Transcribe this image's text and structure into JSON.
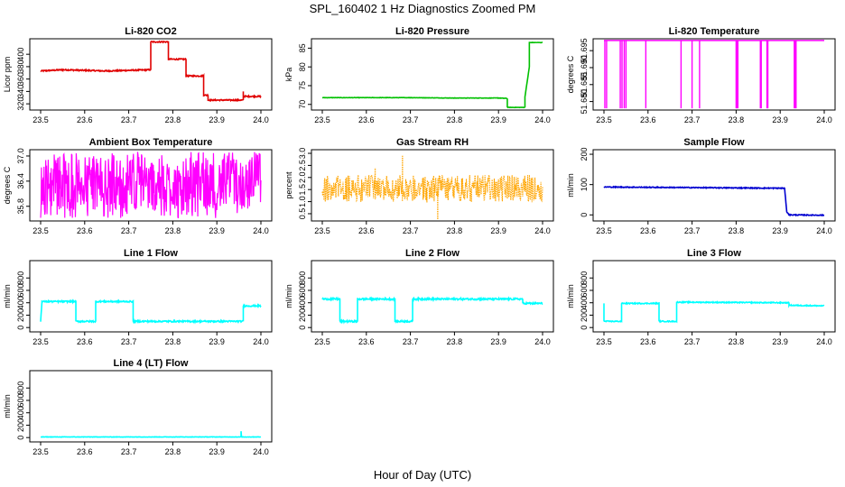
{
  "title": "SPL_160402  1 Hz Diagnostics Zoomed PM",
  "xlabel": "Hour of Day (UTC)",
  "chart_data": [
    {
      "type": "line",
      "title": "Li-820 CO2",
      "ylabel": "Licor ppm",
      "color": "#e00000",
      "xlim": [
        23.5,
        24.0
      ],
      "ylim": [
        310,
        425
      ],
      "x_ticks": [
        "23.5",
        "23.6",
        "23.7",
        "23.8",
        "23.9",
        "24.0"
      ],
      "y_ticks": [
        320,
        340,
        360,
        380,
        400
      ],
      "noise": 1,
      "series": [
        {
          "points": [
            [
              23.5,
              373
            ],
            [
              23.55,
              375
            ],
            [
              23.6,
              374
            ],
            [
              23.65,
              373
            ],
            [
              23.7,
              374
            ],
            [
              23.75,
              375
            ],
            [
              23.75,
              420
            ],
            [
              23.79,
              420
            ],
            [
              23.79,
              392
            ],
            [
              23.83,
              392
            ],
            [
              23.83,
              365
            ],
            [
              23.87,
              365
            ],
            [
              23.87,
              334
            ],
            [
              23.88,
              334
            ],
            [
              23.88,
              326
            ],
            [
              23.96,
              326
            ],
            [
              23.96,
              340
            ],
            [
              23.96,
              332
            ],
            [
              24.0,
              332
            ]
          ]
        }
      ]
    },
    {
      "type": "line",
      "title": "Li-820 Pressure",
      "ylabel": "kPa",
      "color": "#00c000",
      "xlim": [
        23.5,
        24.0
      ],
      "ylim": [
        68.5,
        87.5
      ],
      "x_ticks": [
        "23.5",
        "23.6",
        "23.7",
        "23.8",
        "23.9",
        "24.0"
      ],
      "y_ticks": [
        70,
        75,
        80,
        85
      ],
      "noise": 0.05,
      "series": [
        {
          "points": [
            [
              23.5,
              71.8
            ],
            [
              23.6,
              71.8
            ],
            [
              23.7,
              71.8
            ],
            [
              23.8,
              71.7
            ],
            [
              23.9,
              71.7
            ],
            [
              23.92,
              71.6
            ],
            [
              23.92,
              69.2
            ],
            [
              23.96,
              69.2
            ],
            [
              23.96,
              72
            ],
            [
              23.97,
              80
            ],
            [
              23.97,
              86.5
            ],
            [
              24.0,
              86.5
            ]
          ]
        }
      ]
    },
    {
      "type": "line",
      "title": "Li-820 Temperature",
      "ylabel": "degrees C",
      "color": "#ff00ff",
      "xlim": [
        23.5,
        24.0
      ],
      "ylim": [
        51.6775,
        51.6985
      ],
      "x_ticks": [
        "23.5",
        "23.6",
        "23.7",
        "23.8",
        "23.9",
        "24.0"
      ],
      "y_ticks": [
        "51.680",
        "51.685",
        "51.690",
        "51.695"
      ],
      "dips": [
        23.502,
        23.506,
        23.537,
        23.541,
        23.546,
        23.55,
        23.595,
        23.675,
        23.7,
        23.717,
        23.8,
        23.802,
        23.804,
        23.855,
        23.857,
        23.87,
        23.872,
        23.932,
        23.934,
        23.936
      ],
      "series": [
        {
          "points": [
            [
              23.5,
              51.698
            ],
            [
              24.0,
              51.698
            ]
          ],
          "dip_to": 51.678
        }
      ]
    },
    {
      "type": "line",
      "title": "Ambient Box Temperature",
      "ylabel": "degrees C",
      "color": "#ff00ff",
      "xlim": [
        23.5,
        24.0
      ],
      "ylim": [
        35.45,
        37.15
      ],
      "x_ticks": [
        "23.5",
        "23.6",
        "23.7",
        "23.8",
        "23.9",
        "24.0"
      ],
      "y_ticks": [
        "35.8",
        "36.4",
        "37.0"
      ],
      "series": [
        {
          "noise_band": {
            "center": 36.4,
            "low": 35.7,
            "high": 36.95
          }
        }
      ]
    },
    {
      "type": "scatter",
      "title": "Gas Stream RH",
      "ylabel": "percent",
      "color": "#ffa500",
      "xlim": [
        23.5,
        24.0
      ],
      "ylim": [
        0.2,
        3.15
      ],
      "x_ticks": [
        "23.5",
        "23.6",
        "23.7",
        "23.8",
        "23.9",
        "24.0"
      ],
      "y_ticks": [
        "0.5",
        "1.0",
        "1.5",
        "2.0",
        "2.5",
        "3.0"
      ],
      "series": [
        {
          "noise_band": {
            "center": 1.55,
            "low": 1.1,
            "high": 2.0
          },
          "spikes": [
            [
              23.682,
              2.9
            ],
            [
              23.762,
              0.25
            ],
            [
              23.62,
              2.4
            ],
            [
              23.56,
              1.0
            ]
          ]
        }
      ]
    },
    {
      "type": "line",
      "title": "Sample Flow",
      "ylabel": "ml/min",
      "color": "#0000d0",
      "xlim": [
        23.5,
        24.0
      ],
      "ylim": [
        -20,
        215
      ],
      "x_ticks": [
        "23.5",
        "23.6",
        "23.7",
        "23.8",
        "23.9",
        "24.0"
      ],
      "y_ticks": [
        0,
        100,
        200
      ],
      "noise": 1.5,
      "series": [
        {
          "points": [
            [
              23.5,
              92
            ],
            [
              23.7,
              90
            ],
            [
              23.9,
              88
            ],
            [
              23.91,
              88
            ],
            [
              23.915,
              10
            ],
            [
              23.92,
              0
            ],
            [
              24.0,
              -1
            ]
          ]
        }
      ]
    },
    {
      "type": "line",
      "title": "Line 1 Flow",
      "ylabel": "ml/min",
      "color": "#00ffff",
      "xlim": [
        23.5,
        24.0
      ],
      "ylim": [
        -70,
        1080
      ],
      "x_ticks": [
        "23.5",
        "23.6",
        "23.7",
        "23.8",
        "23.9",
        "24.0"
      ],
      "y_ticks": [
        0,
        200,
        400,
        600,
        800
      ],
      "noise": 12,
      "series": [
        {
          "points": [
            [
              23.5,
              100
            ],
            [
              23.503,
              420
            ],
            [
              23.58,
              420
            ],
            [
              23.58,
              100
            ],
            [
              23.625,
              100
            ],
            [
              23.625,
              420
            ],
            [
              23.71,
              420
            ],
            [
              23.71,
              100
            ],
            [
              23.96,
              100
            ],
            [
              23.96,
              350
            ],
            [
              24.0,
              350
            ]
          ]
        }
      ]
    },
    {
      "type": "line",
      "title": "Line 2 Flow",
      "ylabel": "ml/min",
      "color": "#00ffff",
      "xlim": [
        23.5,
        24.0
      ],
      "ylim": [
        -70,
        1080
      ],
      "x_ticks": [
        "23.5",
        "23.6",
        "23.7",
        "23.8",
        "23.9",
        "24.0"
      ],
      "y_ticks": [
        0,
        200,
        400,
        600,
        800
      ],
      "noise": 14,
      "series": [
        {
          "points": [
            [
              23.5,
              460
            ],
            [
              23.54,
              460
            ],
            [
              23.54,
              100
            ],
            [
              23.58,
              100
            ],
            [
              23.58,
              460
            ],
            [
              23.665,
              460
            ],
            [
              23.665,
              100
            ],
            [
              23.705,
              100
            ],
            [
              23.705,
              460
            ],
            [
              23.955,
              460
            ],
            [
              23.955,
              390
            ],
            [
              24.0,
              390
            ]
          ]
        }
      ]
    },
    {
      "type": "line",
      "title": "Line 3 Flow",
      "ylabel": "ml/min",
      "color": "#00ffff",
      "xlim": [
        23.5,
        24.0
      ],
      "ylim": [
        -70,
        1080
      ],
      "x_ticks": [
        "23.5",
        "23.6",
        "23.7",
        "23.8",
        "23.9",
        "24.0"
      ],
      "y_ticks": [
        0,
        200,
        400,
        600,
        800
      ],
      "noise": 8,
      "series": [
        {
          "points": [
            [
              23.5,
              390
            ],
            [
              23.5,
              100
            ],
            [
              23.54,
              100
            ],
            [
              23.54,
              390
            ],
            [
              23.625,
              390
            ],
            [
              23.625,
              100
            ],
            [
              23.665,
              100
            ],
            [
              23.665,
              410
            ],
            [
              23.92,
              400
            ],
            [
              23.92,
              360
            ],
            [
              24.0,
              350
            ]
          ]
        }
      ]
    },
    {
      "type": "line",
      "title": "Line 4 (LT) Flow",
      "ylabel": "ml/min",
      "color": "#00ffff",
      "xlim": [
        23.5,
        24.0
      ],
      "ylim": [
        -70,
        1080
      ],
      "x_ticks": [
        "23.5",
        "23.6",
        "23.7",
        "23.8",
        "23.9",
        "24.0"
      ],
      "y_ticks": [
        0,
        200,
        400,
        600,
        800
      ],
      "noise": 3,
      "series": [
        {
          "points": [
            [
              23.5,
              10
            ],
            [
              23.955,
              10
            ],
            [
              23.955,
              100
            ],
            [
              23.956,
              10
            ],
            [
              24.0,
              10
            ]
          ]
        }
      ]
    }
  ]
}
